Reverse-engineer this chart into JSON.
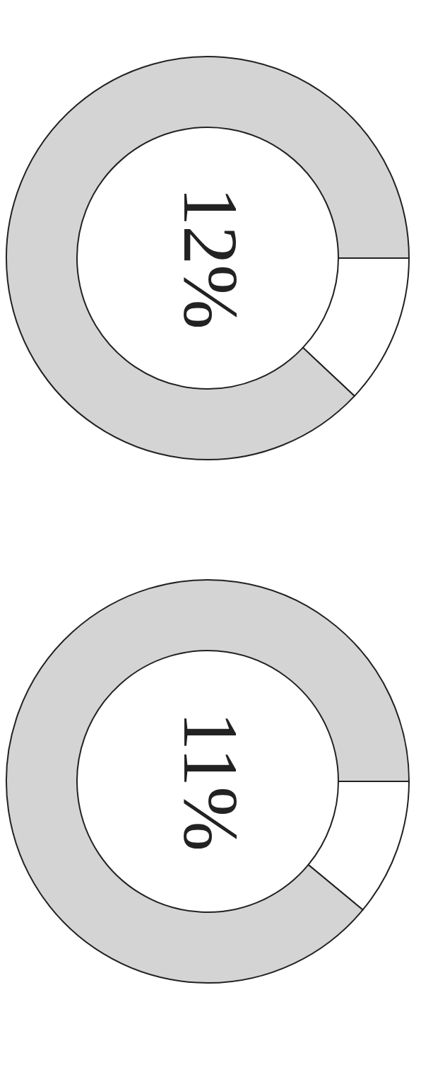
{
  "chart_data": [
    {
      "type": "donut",
      "categories": [
        null,
        null
      ],
      "values": [
        12,
        88
      ],
      "colors": [
        "#ffffff",
        "#d4d4d4"
      ],
      "value_labels": [
        "12%",
        null
      ]
    },
    {
      "type": "donut",
      "categories": [
        null,
        null
      ],
      "values": [
        11,
        89
      ],
      "colors": [
        "#ffffff",
        "#d4d4d4"
      ],
      "value_labels": [
        "11%",
        null
      ]
    }
  ]
}
